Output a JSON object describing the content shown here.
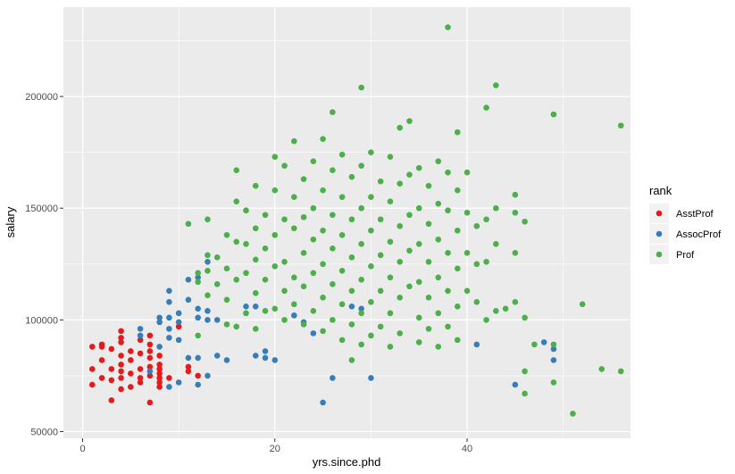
{
  "chart_data": {
    "type": "scatter",
    "xlabel": "yrs.since.phd",
    "ylabel": "salary",
    "xlim": [
      -2,
      57
    ],
    "ylim": [
      47000,
      240000
    ],
    "x_ticks": [
      0,
      20,
      40
    ],
    "y_ticks": [
      50000,
      100000,
      150000,
      200000
    ],
    "x_tick_labels": [
      "0",
      "20",
      "40"
    ],
    "y_tick_labels": [
      "50000",
      "100000",
      "150000",
      "200000"
    ],
    "x_minor_ticks": [
      10,
      30,
      50
    ],
    "y_minor_ticks": [
      75000,
      125000,
      175000,
      225000
    ],
    "grid": true,
    "legend": {
      "title": "rank",
      "position": "right"
    },
    "colors": {
      "panel": "#ebebeb",
      "grid": "#ffffff",
      "text": "#4d4d4d"
    },
    "series": [
      {
        "name": "AsstProf",
        "color": "#e41a1c",
        "points": [
          [
            1,
            88000
          ],
          [
            1,
            78000
          ],
          [
            1,
            71000
          ],
          [
            2,
            89000
          ],
          [
            2,
            82000
          ],
          [
            2,
            74000
          ],
          [
            2,
            88000
          ],
          [
            3,
            87000
          ],
          [
            3,
            78000
          ],
          [
            3,
            73000
          ],
          [
            3,
            64000
          ],
          [
            4,
            92000
          ],
          [
            4,
            90000
          ],
          [
            4,
            84000
          ],
          [
            4,
            80000
          ],
          [
            4,
            77000
          ],
          [
            4,
            74000
          ],
          [
            4,
            69000
          ],
          [
            4,
            95000
          ],
          [
            5,
            86000
          ],
          [
            5,
            82000
          ],
          [
            5,
            76000
          ],
          [
            5,
            70000
          ],
          [
            6,
            91000
          ],
          [
            6,
            85000
          ],
          [
            6,
            78000
          ],
          [
            6,
            74000
          ],
          [
            6,
            72000
          ],
          [
            7,
            93000
          ],
          [
            7,
            89000
          ],
          [
            7,
            83000
          ],
          [
            7,
            79000
          ],
          [
            7,
            75000
          ],
          [
            7,
            63000
          ],
          [
            7,
            86000
          ],
          [
            8,
            84000
          ],
          [
            8,
            80000
          ],
          [
            8,
            78000
          ],
          [
            8,
            76000
          ],
          [
            8,
            74000
          ],
          [
            8,
            72000
          ],
          [
            8,
            70000
          ],
          [
            9,
            74000
          ],
          [
            10,
            97000
          ],
          [
            11,
            79000
          ],
          [
            11,
            77000
          ],
          [
            12,
            75000
          ]
        ]
      },
      {
        "name": "AssocProf",
        "color": "#377eb8",
        "points": [
          [
            6,
            96000
          ],
          [
            6,
            93000
          ],
          [
            7,
            77000
          ],
          [
            8,
            101000
          ],
          [
            8,
            99000
          ],
          [
            8,
            88000
          ],
          [
            9,
            113000
          ],
          [
            9,
            108000
          ],
          [
            9,
            101000
          ],
          [
            9,
            96000
          ],
          [
            9,
            92000
          ],
          [
            9,
            70000
          ],
          [
            10,
            103000
          ],
          [
            10,
            99000
          ],
          [
            10,
            91000
          ],
          [
            10,
            72000
          ],
          [
            11,
            118000
          ],
          [
            11,
            109000
          ],
          [
            11,
            83000
          ],
          [
            12,
            119000
          ],
          [
            12,
            105000
          ],
          [
            12,
            101000
          ],
          [
            12,
            83000
          ],
          [
            12,
            71000
          ],
          [
            13,
            126000
          ],
          [
            13,
            104000
          ],
          [
            13,
            100000
          ],
          [
            13,
            75000
          ],
          [
            14,
            100000
          ],
          [
            14,
            84000
          ],
          [
            15,
            82000
          ],
          [
            17,
            106000
          ],
          [
            18,
            84000
          ],
          [
            18,
            106000
          ],
          [
            19,
            86000
          ],
          [
            19,
            83000
          ],
          [
            20,
            82000
          ],
          [
            22,
            102000
          ],
          [
            23,
            99000
          ],
          [
            24,
            94000
          ],
          [
            25,
            63000
          ],
          [
            26,
            74000
          ],
          [
            28,
            106000
          ],
          [
            29,
            105000
          ],
          [
            30,
            74000
          ],
          [
            41,
            89000
          ],
          [
            45,
            71000
          ],
          [
            48,
            90000
          ],
          [
            49,
            87000
          ],
          [
            49,
            82000
          ]
        ]
      },
      {
        "name": "Prof",
        "color": "#4daf4a",
        "points": [
          [
            11,
            143000
          ],
          [
            12,
            121000
          ],
          [
            12,
            117000
          ],
          [
            12,
            93000
          ],
          [
            13,
            145000
          ],
          [
            13,
            129000
          ],
          [
            13,
            122000
          ],
          [
            13,
            111000
          ],
          [
            14,
            128000
          ],
          [
            14,
            116000
          ],
          [
            15,
            138000
          ],
          [
            15,
            123000
          ],
          [
            15,
            109000
          ],
          [
            15,
            98000
          ],
          [
            16,
            167000
          ],
          [
            16,
            153000
          ],
          [
            16,
            135000
          ],
          [
            16,
            118000
          ],
          [
            16,
            97000
          ],
          [
            17,
            149000
          ],
          [
            17,
            134000
          ],
          [
            17,
            121000
          ],
          [
            17,
            103000
          ],
          [
            18,
            160000
          ],
          [
            18,
            141000
          ],
          [
            18,
            127000
          ],
          [
            18,
            112000
          ],
          [
            18,
            96000
          ],
          [
            19,
            147000
          ],
          [
            19,
            132000
          ],
          [
            19,
            118000
          ],
          [
            19,
            104000
          ],
          [
            20,
            173000
          ],
          [
            20,
            158000
          ],
          [
            20,
            138000
          ],
          [
            20,
            124000
          ],
          [
            20,
            105000
          ],
          [
            21,
            169000
          ],
          [
            21,
            145000
          ],
          [
            21,
            126000
          ],
          [
            21,
            113000
          ],
          [
            21,
            100000
          ],
          [
            22,
            180000
          ],
          [
            22,
            155000
          ],
          [
            22,
            141000
          ],
          [
            22,
            119000
          ],
          [
            22,
            107000
          ],
          [
            23,
            163000
          ],
          [
            23,
            146000
          ],
          [
            23,
            130000
          ],
          [
            23,
            115000
          ],
          [
            23,
            98000
          ],
          [
            24,
            171000
          ],
          [
            24,
            150000
          ],
          [
            24,
            136000
          ],
          [
            24,
            121000
          ],
          [
            24,
            104000
          ],
          [
            25,
            181000
          ],
          [
            25,
            158000
          ],
          [
            25,
            140000
          ],
          [
            25,
            125000
          ],
          [
            25,
            110000
          ],
          [
            25,
            95000
          ],
          [
            26,
            193000
          ],
          [
            26,
            167000
          ],
          [
            26,
            147000
          ],
          [
            26,
            132000
          ],
          [
            26,
            116000
          ],
          [
            26,
            100000
          ],
          [
            27,
            174000
          ],
          [
            27,
            155000
          ],
          [
            27,
            138000
          ],
          [
            27,
            122000
          ],
          [
            27,
            107000
          ],
          [
            27,
            91000
          ],
          [
            28,
            164000
          ],
          [
            28,
            145000
          ],
          [
            28,
            128000
          ],
          [
            28,
            113000
          ],
          [
            28,
            98000
          ],
          [
            28,
            82000
          ],
          [
            29,
            204000
          ],
          [
            29,
            169000
          ],
          [
            29,
            150000
          ],
          [
            29,
            134000
          ],
          [
            29,
            118000
          ],
          [
            29,
            103000
          ],
          [
            29,
            89000
          ],
          [
            30,
            175000
          ],
          [
            30,
            155000
          ],
          [
            30,
            140000
          ],
          [
            30,
            124000
          ],
          [
            30,
            108000
          ],
          [
            30,
            93000
          ],
          [
            31,
            162000
          ],
          [
            31,
            145000
          ],
          [
            31,
            129000
          ],
          [
            31,
            113000
          ],
          [
            31,
            97000
          ],
          [
            32,
            173000
          ],
          [
            32,
            153000
          ],
          [
            32,
            135000
          ],
          [
            32,
            119000
          ],
          [
            32,
            103000
          ],
          [
            32,
            88000
          ],
          [
            33,
            186000
          ],
          [
            33,
            161000
          ],
          [
            33,
            142000
          ],
          [
            33,
            126000
          ],
          [
            33,
            110000
          ],
          [
            33,
            94000
          ],
          [
            34,
            189000
          ],
          [
            34,
            165000
          ],
          [
            34,
            147000
          ],
          [
            34,
            131000
          ],
          [
            34,
            115000
          ],
          [
            35,
            168000
          ],
          [
            35,
            150000
          ],
          [
            35,
            134000
          ],
          [
            35,
            117000
          ],
          [
            35,
            101000
          ],
          [
            35,
            90000
          ],
          [
            36,
            160000
          ],
          [
            36,
            143000
          ],
          [
            36,
            126000
          ],
          [
            36,
            110000
          ],
          [
            36,
            96000
          ],
          [
            37,
            171000
          ],
          [
            37,
            152000
          ],
          [
            37,
            136000
          ],
          [
            37,
            119000
          ],
          [
            37,
            103000
          ],
          [
            37,
            88000
          ],
          [
            38,
            231000
          ],
          [
            38,
            166000
          ],
          [
            38,
            149000
          ],
          [
            38,
            130000
          ],
          [
            38,
            113000
          ],
          [
            38,
            97000
          ],
          [
            39,
            184000
          ],
          [
            39,
            158000
          ],
          [
            39,
            140000
          ],
          [
            39,
            123000
          ],
          [
            39,
            106000
          ],
          [
            39,
            91000
          ],
          [
            40,
            166000
          ],
          [
            40,
            148000
          ],
          [
            40,
            130000
          ],
          [
            40,
            113000
          ],
          [
            41,
            142000
          ],
          [
            41,
            125000
          ],
          [
            41,
            108000
          ],
          [
            42,
            195000
          ],
          [
            42,
            145000
          ],
          [
            42,
            126000
          ],
          [
            42,
            100000
          ],
          [
            43,
            205000
          ],
          [
            43,
            150000
          ],
          [
            43,
            134000
          ],
          [
            43,
            104000
          ],
          [
            44,
            105000
          ],
          [
            45,
            156000
          ],
          [
            45,
            148000
          ],
          [
            45,
            130000
          ],
          [
            45,
            108000
          ],
          [
            46,
            144000
          ],
          [
            46,
            101000
          ],
          [
            46,
            77000
          ],
          [
            46,
            67000
          ],
          [
            47,
            89000
          ],
          [
            49,
            192000
          ],
          [
            49,
            89000
          ],
          [
            49,
            72000
          ],
          [
            51,
            58000
          ],
          [
            52,
            107000
          ],
          [
            54,
            78000
          ],
          [
            56,
            187000
          ],
          [
            56,
            77000
          ]
        ]
      }
    ]
  }
}
